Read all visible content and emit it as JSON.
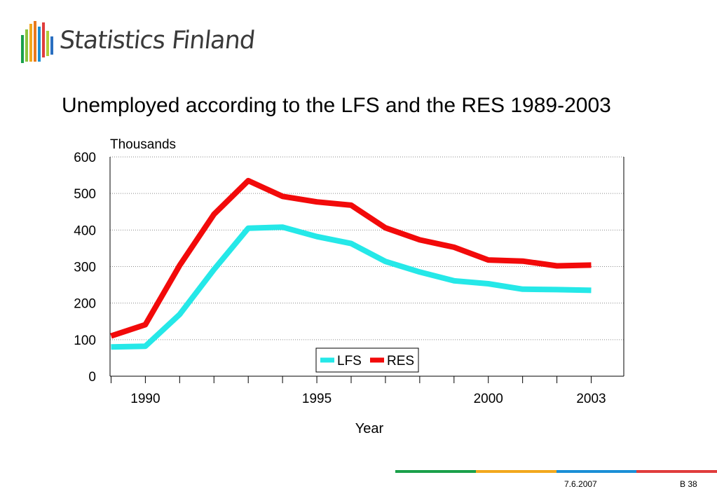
{
  "brand": {
    "name": "Statistics Finland"
  },
  "slide": {
    "title": "Unemployed according to the LFS and the RES 1989-2003"
  },
  "footer": {
    "date": "7.6.2007",
    "page": "B 38",
    "stripe_colors": [
      "#1aa04a",
      "#f2a81d",
      "#1a8fd6",
      "#e03c3c"
    ]
  },
  "chart_data": {
    "type": "line",
    "ylabel": "Thousands",
    "xlabel": "Year",
    "x": [
      1989,
      1990,
      1991,
      1992,
      1993,
      1994,
      1995,
      1996,
      1997,
      1998,
      1999,
      2000,
      2001,
      2002,
      2003
    ],
    "xtick_labels": [
      "1990",
      "1995",
      "2000",
      "2003"
    ],
    "xtick_values": [
      1990,
      1995,
      2000,
      2003
    ],
    "yticks": [
      0,
      100,
      200,
      300,
      400,
      500,
      600
    ],
    "ylim": [
      0,
      600
    ],
    "grid": "horizontal dotted",
    "legend_position": "bottom-center inside plot",
    "series": [
      {
        "name": "LFS",
        "color": "#25e8e8",
        "values": [
          80,
          82,
          169,
          292,
          405,
          408,
          382,
          363,
          314,
          285,
          261,
          253,
          238,
          237,
          235
        ]
      },
      {
        "name": "RES",
        "color": "#f20a0a",
        "values": [
          110,
          141,
          303,
          443,
          535,
          492,
          477,
          468,
          406,
          373,
          353,
          318,
          315,
          302,
          304
        ]
      }
    ]
  }
}
